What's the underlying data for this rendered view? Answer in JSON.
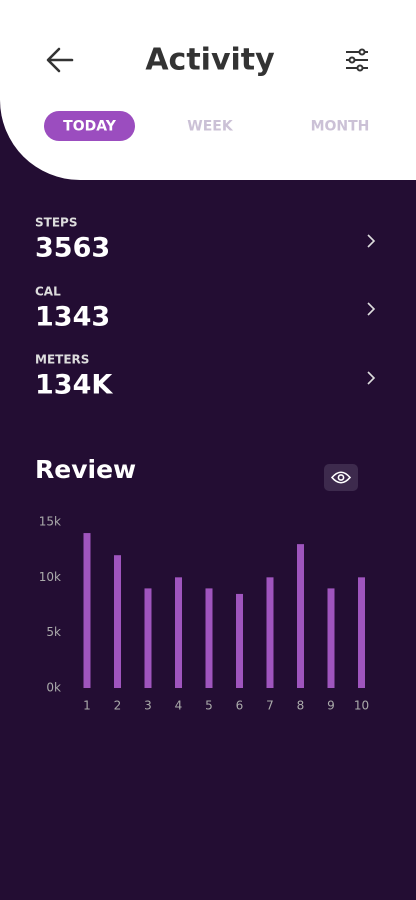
{
  "header": {
    "title": "Activity"
  },
  "tabs": [
    "TODAY",
    "WEEK",
    "MONTH"
  ],
  "stats": [
    {
      "label": "STEPS",
      "value": "3563"
    },
    {
      "label": "CAL",
      "value": "1343"
    },
    {
      "label": "METERS",
      "value": "134K"
    }
  ],
  "review": {
    "title": "Review"
  },
  "chart_data": {
    "type": "bar",
    "categories": [
      "1",
      "2",
      "3",
      "4",
      "5",
      "6",
      "7",
      "8",
      "9",
      "10"
    ],
    "values": [
      14000,
      12000,
      9000,
      10000,
      9000,
      8500,
      10000,
      13000,
      9000,
      10000
    ],
    "color": "#9f55be",
    "ylim": [
      0,
      15000
    ],
    "yticks": [
      {
        "value": 0,
        "label": "0k"
      },
      {
        "value": 5000,
        "label": "5k"
      },
      {
        "value": 10000,
        "label": "10k"
      },
      {
        "value": 15000,
        "label": "15k"
      }
    ],
    "grid": false
  }
}
